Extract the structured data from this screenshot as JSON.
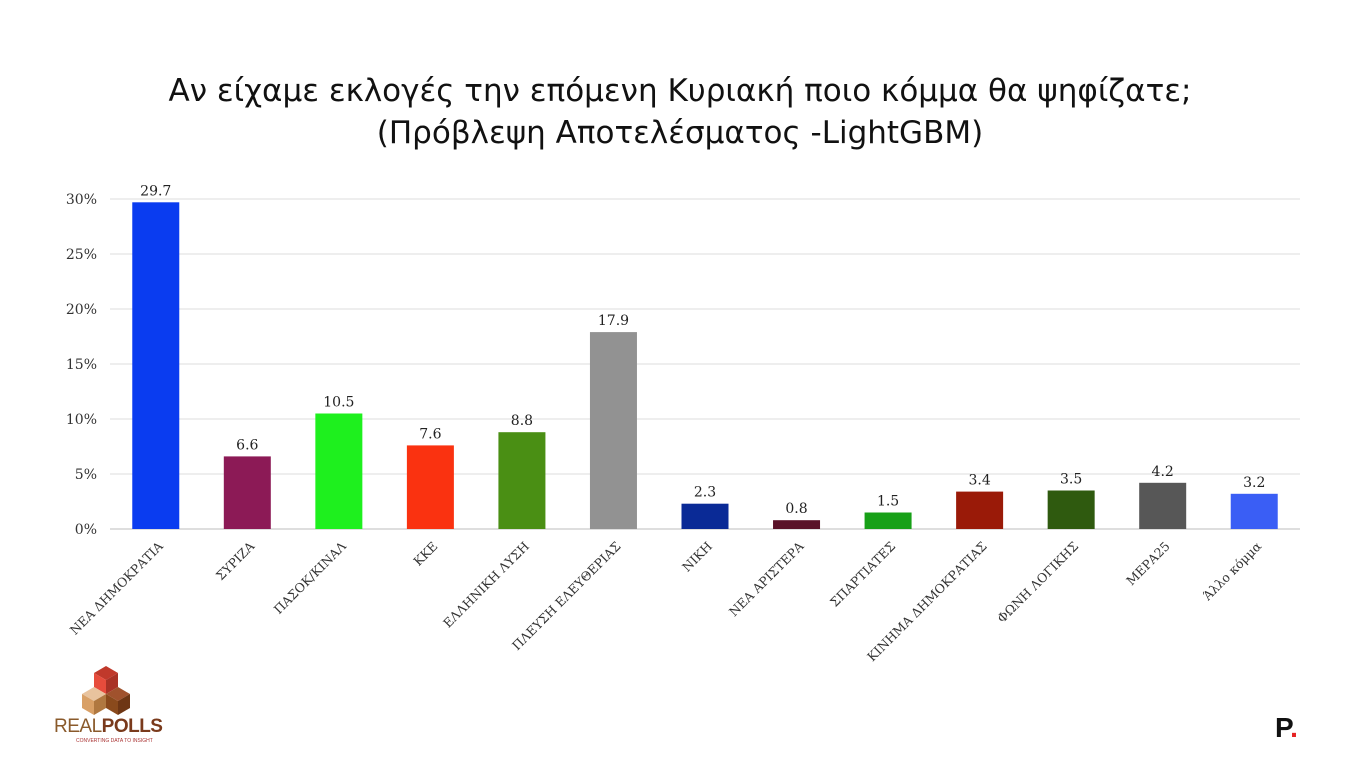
{
  "chart_data": {
    "type": "bar",
    "title": "Αν είχαμε εκλογές την επόμενη Κυριακή ποιο κόμμα θα ψηφίζατε;",
    "subtitle": "(Πρόβλεψη Αποτελέσματος -LightGBM)",
    "categories": [
      "ΝΕΑ ΔΗΜΟΚΡΑΤΙΑ",
      "ΣΥΡΙΖΑ",
      "ΠΑΣΟΚ/ΚΙΝΑΛ",
      "ΚΚΕ",
      "ΕΛΛΗΝΙΚΗ ΛΥΣΗ",
      "ΠΛΕΥΣΗ ΕΛΕΥΘΕΡΙΑΣ",
      "ΝΙΚΗ",
      "ΝΕΑ ΑΡΙΣΤΕΡΑ",
      "ΣΠΑΡΤΙΑΤΕΣ",
      "ΚΙΝΗΜΑ ΔΗΜΟΚΡΑΤΙΑΣ",
      "ΦΩΝΗ ΛΟΓΙΚΗΣ",
      "ΜΕΡΑ25",
      "Άλλο κόμμα"
    ],
    "values": [
      29.7,
      6.6,
      10.5,
      7.6,
      8.8,
      17.9,
      2.3,
      0.8,
      1.5,
      3.4,
      3.5,
      4.2,
      3.2
    ],
    "value_labels": [
      "29.7",
      "6.6",
      "10.5",
      "7.6",
      "8.8",
      "17.9",
      "2.3",
      "0.8",
      "1.5",
      "3.4",
      "3.5",
      "4.2",
      "3.2"
    ],
    "colors": [
      "#0a3cf0",
      "#8c1a56",
      "#1ef01e",
      "#fa3210",
      "#4a8f14",
      "#929292",
      "#0a2a96",
      "#5a1228",
      "#17a017",
      "#9a1a08",
      "#2f5a0f",
      "#575757",
      "#3a5ef5"
    ],
    "yticks": [
      0,
      5,
      10,
      15,
      20,
      25,
      30
    ],
    "ytick_labels": [
      "0%",
      "5%",
      "10%",
      "15%",
      "20%",
      "25%",
      "30%"
    ],
    "ylim": [
      0,
      30
    ],
    "grid": true,
    "xlabel": "",
    "ylabel": ""
  },
  "branding": {
    "logo_text_light": "REAL",
    "logo_text_bold": "POLLS",
    "logo_tagline": "CONVERTING DATA TO INSIGHT",
    "logo_colors": [
      "#c0392b",
      "#d9a066",
      "#8a4a1c"
    ],
    "corner_mark": "P",
    "corner_mark_dot": "."
  }
}
